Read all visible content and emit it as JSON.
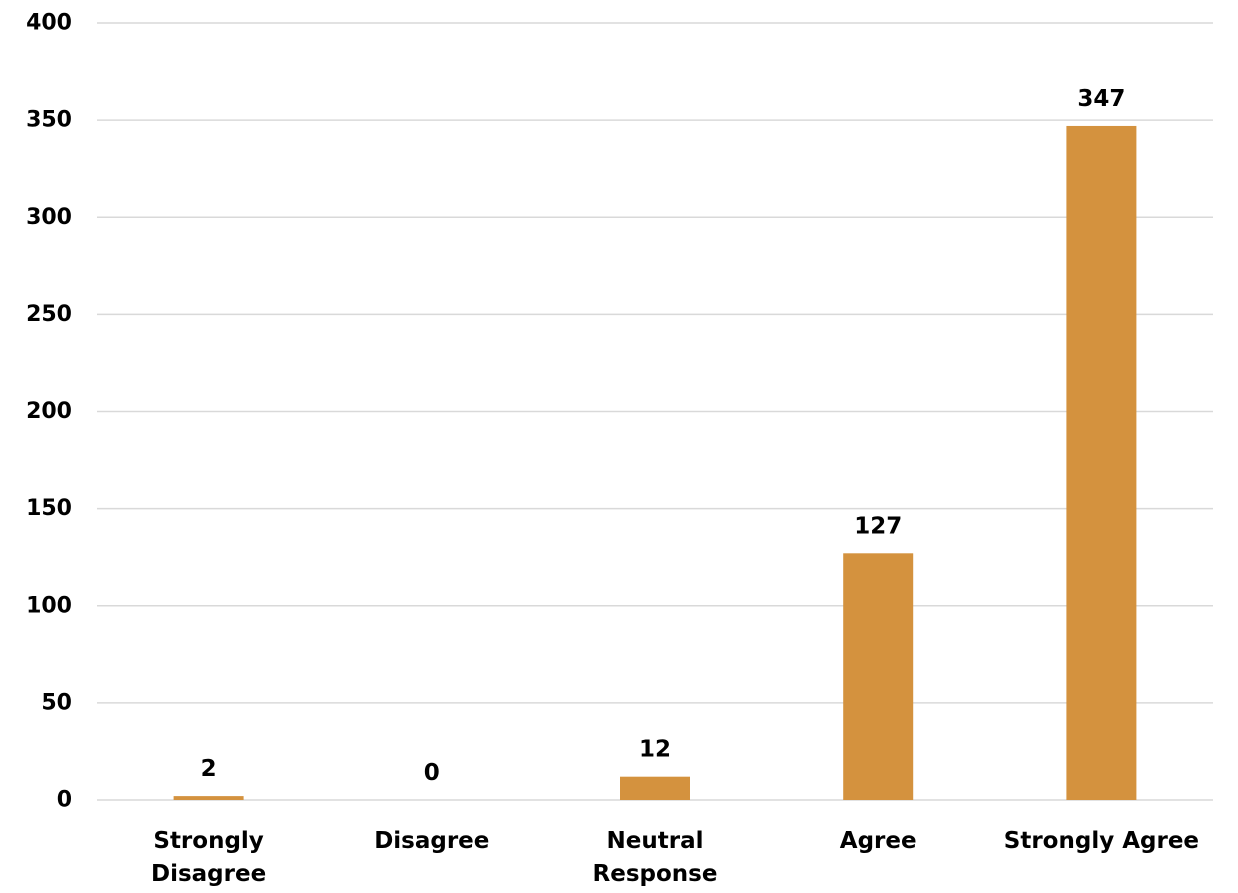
{
  "chart_data": {
    "type": "bar",
    "title": "",
    "xlabel": "",
    "ylabel": "",
    "categories": [
      "Strongly Disagree",
      "Disagree",
      "Neutral Response",
      "Agree",
      "Strongly Agree"
    ],
    "category_lines": [
      [
        "Strongly",
        "Disagree"
      ],
      [
        "Disagree"
      ],
      [
        "Neutral",
        "Response"
      ],
      [
        "Agree"
      ],
      [
        "Strongly Agree"
      ]
    ],
    "values": [
      2,
      0,
      12,
      127,
      347
    ],
    "data_labels": [
      "2",
      "0",
      "12",
      "127",
      "347"
    ],
    "ylim": [
      0,
      400
    ],
    "yticks": [
      0,
      50,
      100,
      150,
      200,
      250,
      300,
      350,
      400
    ],
    "ytick_labels": [
      "0",
      "50",
      "100",
      "150",
      "200",
      "250",
      "300",
      "350",
      "400"
    ],
    "grid": true,
    "legend": "none",
    "colors": {
      "bar": "#D4923E",
      "grid": "#D9D9D9",
      "text": "#000000"
    }
  }
}
